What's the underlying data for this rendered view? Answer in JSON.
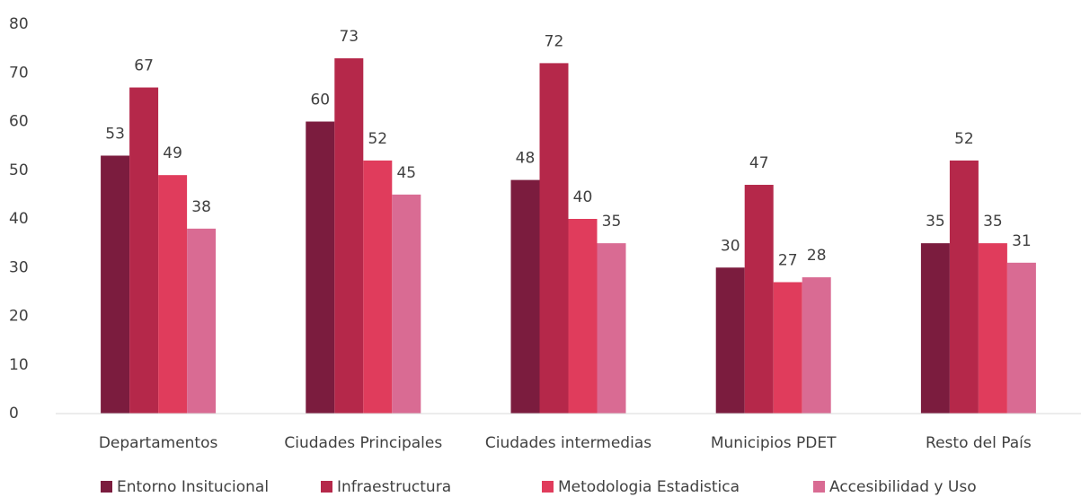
{
  "chart_data": {
    "type": "bar",
    "categories": [
      "Departamentos",
      "Ciudades Principales",
      "Ciudades intermedias",
      "Municipios PDET",
      "Resto del País"
    ],
    "series": [
      {
        "name": "Entorno Insitucional",
        "color": "#7b1c3e",
        "values": [
          53,
          60,
          48,
          30,
          35
        ]
      },
      {
        "name": "Infraestructura",
        "color": "#b5284a",
        "values": [
          67,
          73,
          72,
          47,
          52
        ]
      },
      {
        "name": "Metodologia Estadistica",
        "color": "#e03c5c",
        "values": [
          49,
          52,
          40,
          27,
          35
        ]
      },
      {
        "name": "Accesibilidad y Uso",
        "color": "#d96b93",
        "values": [
          38,
          45,
          35,
          28,
          31
        ]
      }
    ],
    "ylim": [
      0,
      80
    ],
    "yticks": [
      0,
      10,
      20,
      30,
      40,
      50,
      60,
      70,
      80
    ],
    "grid": false,
    "legend": "bottom"
  }
}
